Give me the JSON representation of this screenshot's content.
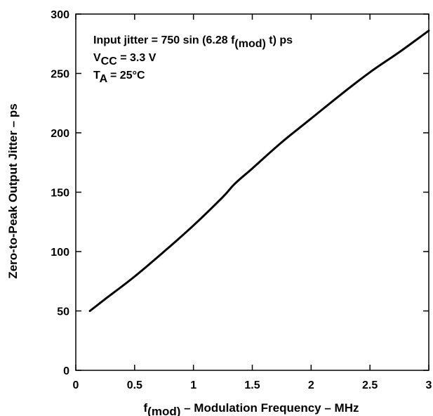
{
  "chart_data": {
    "type": "line",
    "title": "",
    "xlabel_pre": "f",
    "xlabel_sub": "(mod)",
    "xlabel_post": " – Modulation Frequency – MHz",
    "ylabel": "Zero-to-Peak Output Jitter – ps",
    "xlim": [
      0,
      3
    ],
    "ylim": [
      0,
      300
    ],
    "xticks": [
      0,
      0.5,
      1,
      1.5,
      2,
      2.5,
      3
    ],
    "xtick_labels": [
      "0",
      "0.5",
      "1",
      "1.5",
      "2",
      "2.5",
      "3"
    ],
    "yticks": [
      0,
      50,
      100,
      150,
      200,
      250,
      300
    ],
    "ytick_labels": [
      "0",
      "50",
      "100",
      "150",
      "200",
      "250",
      "300"
    ],
    "grid": false,
    "annotations": {
      "line1_pre": "Input jitter = 750 sin (6.28 f",
      "line1_sub": "(mod)",
      "line1_post": " t) ps",
      "line2_pre": "V",
      "line2_sub": "CC",
      "line2_post": " = 3.3 V",
      "line3_pre": "T",
      "line3_sub": "A",
      "line3_post": " = 25°C"
    },
    "series": [
      {
        "x": [
          0.12,
          0.25,
          0.5,
          0.75,
          1.0,
          1.25,
          1.35,
          1.5,
          1.75,
          2.0,
          2.25,
          2.5,
          2.75,
          3.0
        ],
        "y": [
          50,
          60,
          79,
          100,
          122,
          146,
          157,
          170,
          192,
          212,
          232,
          251,
          268,
          286
        ]
      }
    ]
  }
}
